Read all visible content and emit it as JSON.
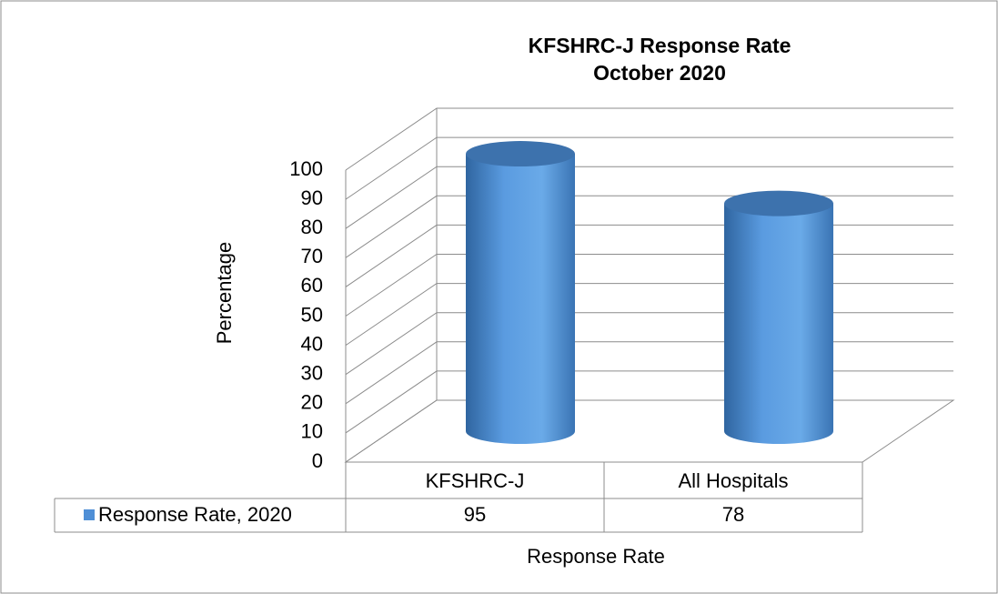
{
  "chart_data": {
    "type": "bar3d",
    "title": "KFSHRC-J Response Rate",
    "subtitle": "October 2020",
    "categories": [
      "KFSHRC-J",
      "All Hospitals"
    ],
    "series": [
      {
        "name": "Response Rate, 2020",
        "color": "#4f8fd6",
        "values": [
          95,
          78
        ]
      }
    ],
    "ylim": [
      0,
      100
    ],
    "yticks": [
      0,
      10,
      20,
      30,
      40,
      50,
      60,
      70,
      80,
      90,
      100
    ],
    "ylabel": "Percentage",
    "xlabel": "Response Rate",
    "grid": true,
    "legend": "table"
  }
}
